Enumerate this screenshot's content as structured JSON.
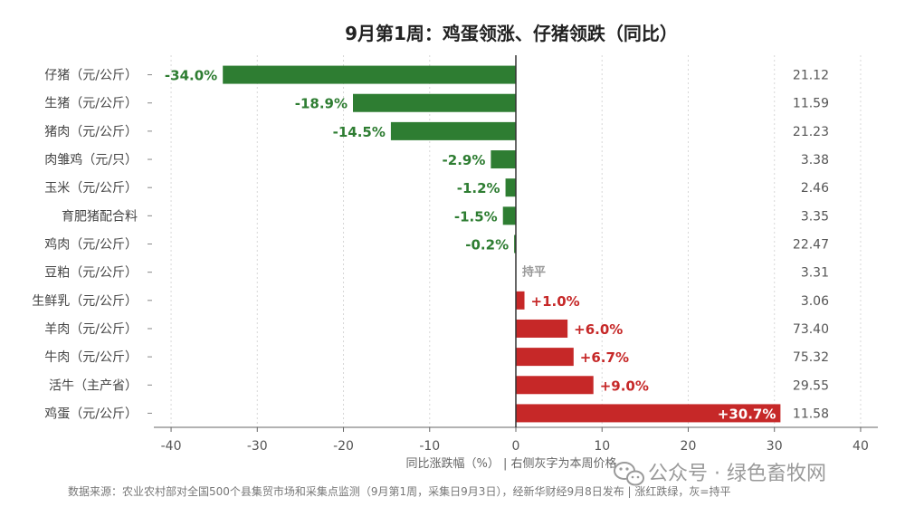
{
  "chart_data": {
    "type": "bar",
    "orientation": "horizontal",
    "title": "9月第1周：鸡蛋领涨、仔猪领跌（同比）",
    "categories": [
      "仔猪（元/公斤）",
      "生猪（元/公斤）",
      "猪肉（元/公斤）",
      "肉雏鸡（元/只）",
      "玉米（元/公斤）",
      "育肥猪配合料",
      "鸡肉（元/公斤）",
      "豆粕（元/公斤）",
      "生鲜乳（元/公斤）",
      "羊肉（元/公斤）",
      "牛肉（元/公斤）",
      "活牛（主产省）",
      "鸡蛋（元/公斤）"
    ],
    "values": [
      -34.0,
      -18.9,
      -14.5,
      -2.9,
      -1.2,
      -1.5,
      -0.2,
      0,
      1.0,
      6.0,
      6.7,
      9.0,
      30.7
    ],
    "value_labels": [
      "-34.0%",
      "-18.9%",
      "-14.5%",
      "-2.9%",
      "-1.2%",
      "-1.5%",
      "-0.2%",
      "持平",
      "+1.0%",
      "+6.0%",
      "+6.7%",
      "+9.0%",
      "+30.7%"
    ],
    "prices": [
      "21.12",
      "11.59",
      "21.23",
      "3.38",
      "2.46",
      "3.35",
      "22.47",
      "3.31",
      "3.06",
      "73.40",
      "75.32",
      "29.55",
      "11.58"
    ],
    "xlim": [
      -42,
      42
    ],
    "xticks": [
      -40,
      -30,
      -20,
      -10,
      0,
      10,
      20,
      30,
      40
    ],
    "xtick_labels": [
      "-40",
      "-30",
      "-20",
      "-10",
      "0",
      "10",
      "20",
      "30",
      "40"
    ],
    "xlabel": "同比涨跌幅（%）    |    右侧灰字为本周价格",
    "grid": true,
    "colors": {
      "down": "#2e7d32",
      "up": "#c62828",
      "flat": "#999999",
      "axis": "#333333"
    }
  },
  "source_note": "数据来源：农业农村部对全国500个县集贸市场和采集点监测（9月第1周，采集日9月3日），经新华财经9月8日发布 | 涨红跌绿，灰=持平",
  "watermark": "公众号 · 绿色畜牧网"
}
